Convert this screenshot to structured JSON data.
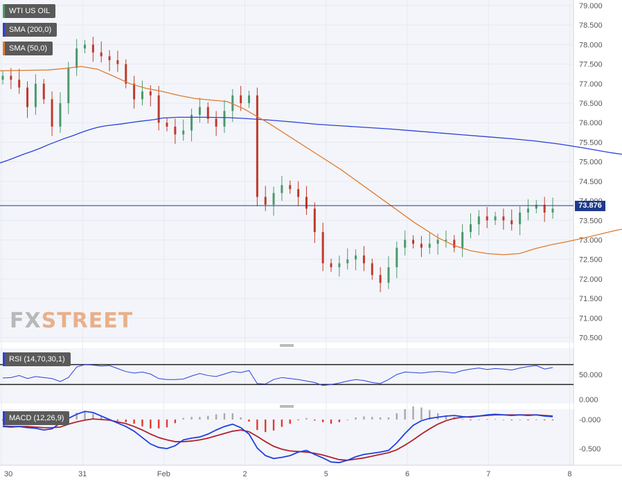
{
  "legends": {
    "price": {
      "label": "WTI US OIL",
      "color": "#4a9a6a"
    },
    "sma200": {
      "label": "SMA (200,0)",
      "color": "#2b3fd8"
    },
    "sma50": {
      "label": "SMA (50,0)",
      "color": "#e07a2e"
    },
    "rsi": {
      "label": "RSI (14,70,30,1)",
      "color": "#2b3fd8"
    },
    "macd": {
      "label": "MACD (12,26,9)",
      "color": "#2b3fd8"
    }
  },
  "current_price_label": "73.876",
  "logo": {
    "part1": "FX",
    "part2": "STREET"
  },
  "colors": {
    "up": "#4a9a6a",
    "down": "#c0392b",
    "macd_line": "#1f3fe0",
    "signal_line": "#b3202a",
    "hist_pos": "#a8a8a8",
    "hist_neg": "#e53935",
    "grid": "#e6e9ef",
    "plot_bg": "#f3f5fa"
  },
  "chart_data": [
    {
      "type": "candlestick",
      "title": "WTI US OIL",
      "x_ticks": [
        "30",
        "31",
        "Feb",
        "2",
        "5",
        "6",
        "7",
        "8"
      ],
      "y_ticks": [
        "79.000",
        "78.500",
        "78.000",
        "77.500",
        "77.000",
        "76.500",
        "76.000",
        "75.500",
        "75.000",
        "74.500",
        "74.000",
        "73.500",
        "73.000",
        "72.500",
        "72.000",
        "71.500",
        "71.000",
        "70.500"
      ],
      "ylim": [
        70.4,
        79.1
      ],
      "last_price": 73.876,
      "close_series": [
        77.2,
        77.1,
        76.9,
        76.4,
        77.0,
        76.6,
        75.9,
        76.5,
        77.4,
        77.9,
        78.0,
        77.8,
        77.7,
        77.6,
        77.5,
        77.0,
        76.6,
        76.8,
        76.7,
        76.0,
        75.9,
        75.7,
        75.8,
        76.2,
        76.4,
        76.1,
        75.9,
        76.3,
        76.7,
        76.5,
        76.7,
        74.1,
        73.9,
        74.2,
        74.4,
        74.3,
        74.1,
        73.8,
        73.2,
        72.4,
        72.3,
        72.4,
        72.5,
        72.6,
        72.4,
        72.1,
        71.9,
        72.3,
        72.8,
        73.0,
        72.9,
        72.8,
        72.9,
        73.0,
        73.0,
        72.8,
        73.2,
        73.4,
        73.6,
        73.5,
        73.6,
        73.5,
        73.4,
        73.7,
        73.8,
        73.9,
        73.7,
        73.8
      ],
      "series": [
        {
          "name": "SMA (200,0)",
          "x": [
            0,
            0.1,
            0.2,
            0.3,
            0.4,
            0.5,
            0.6,
            0.7,
            0.8,
            0.9,
            1.0,
            1.1,
            1.2,
            1.3,
            1.5,
            1.7,
            1.9,
            2.0,
            2.2,
            2.5,
            2.8,
            3.0,
            3.3,
            3.6,
            3.9,
            4.2,
            4.5,
            4.8,
            5.1,
            5.4,
            5.7,
            6.0,
            6.3,
            6.6,
            6.9,
            7.2,
            7.5,
            7.8
          ],
          "values": [
            74.97,
            75.04,
            75.12,
            75.2,
            75.27,
            75.35,
            75.44,
            75.52,
            75.6,
            75.67,
            75.75,
            75.82,
            75.88,
            75.92,
            75.97,
            76.03,
            76.08,
            76.12,
            76.14,
            76.14,
            76.13,
            76.11,
            76.07,
            76.02,
            75.96,
            75.92,
            75.88,
            75.84,
            75.79,
            75.74,
            75.69,
            75.64,
            75.59,
            75.53,
            75.45,
            75.35,
            75.24,
            75.15
          ]
        },
        {
          "name": "SMA (50,0)",
          "x": [
            0,
            0.3,
            0.6,
            0.8,
            1.0,
            1.2,
            1.4,
            1.6,
            1.8,
            2.0,
            2.2,
            2.4,
            2.6,
            2.8,
            3.0,
            3.3,
            3.6,
            3.9,
            4.2,
            4.5,
            4.8,
            5.1,
            5.4,
            5.6,
            5.8,
            6.0,
            6.2,
            6.4,
            6.6,
            6.8,
            7.0,
            7.2,
            7.4,
            7.6,
            7.8
          ],
          "values": [
            77.33,
            77.34,
            77.35,
            77.39,
            77.44,
            77.37,
            77.19,
            77.0,
            76.88,
            76.8,
            76.7,
            76.62,
            76.58,
            76.54,
            76.36,
            76.0,
            75.6,
            75.2,
            74.8,
            74.35,
            73.9,
            73.45,
            73.05,
            72.85,
            72.72,
            72.65,
            72.62,
            72.65,
            72.78,
            72.88,
            72.96,
            73.05,
            73.15,
            73.25,
            73.32
          ]
        }
      ]
    },
    {
      "type": "line",
      "title": "RSI (14,70,30,1)",
      "y_ticks": [
        "50.000",
        "0.000"
      ],
      "ylim": [
        0,
        100
      ],
      "thresholds": [
        70,
        30
      ],
      "series": [
        {
          "name": "RSI (14,70,30,1)",
          "values": [
            43,
            44,
            48,
            42,
            46,
            44,
            42,
            36,
            44,
            65,
            70,
            69,
            67,
            68,
            62,
            56,
            53,
            55,
            51,
            42,
            40,
            40,
            41,
            47,
            52,
            48,
            46,
            51,
            56,
            54,
            58,
            32,
            31,
            40,
            44,
            42,
            40,
            37,
            34,
            28,
            30,
            33,
            37,
            40,
            38,
            34,
            32,
            40,
            50,
            55,
            54,
            53,
            55,
            56,
            55,
            53,
            58,
            61,
            63,
            60,
            62,
            61,
            59,
            63,
            66,
            68,
            61,
            64
          ]
        }
      ]
    },
    {
      "type": "bar+line",
      "title": "MACD (12,26,9)",
      "y_ticks": [
        "-0.000",
        "-0.500"
      ],
      "ylim": [
        -0.75,
        0.2
      ],
      "series": [
        {
          "name": "MACD (12,26,9)",
          "values": [
            -0.12,
            -0.13,
            -0.12,
            -0.14,
            -0.15,
            -0.18,
            -0.16,
            -0.06,
            0.02,
            0.09,
            0.14,
            0.12,
            0.06,
            0.0,
            -0.06,
            -0.12,
            -0.2,
            -0.31,
            -0.42,
            -0.48,
            -0.5,
            -0.45,
            -0.35,
            -0.32,
            -0.3,
            -0.25,
            -0.18,
            -0.12,
            -0.08,
            -0.14,
            -0.25,
            -0.49,
            -0.62,
            -0.67,
            -0.65,
            -0.62,
            -0.56,
            -0.53,
            -0.6,
            -0.66,
            -0.73,
            -0.74,
            -0.7,
            -0.64,
            -0.6,
            -0.58,
            -0.56,
            -0.53,
            -0.4,
            -0.24,
            -0.1,
            -0.02,
            0.02,
            0.04,
            0.06,
            0.07,
            0.05,
            0.04,
            0.06,
            0.08,
            0.09,
            0.08,
            0.07,
            0.08,
            0.07,
            0.08,
            0.06,
            0.05
          ]
        },
        {
          "name": "Signal",
          "values": [
            -0.11,
            -0.12,
            -0.12,
            -0.12,
            -0.13,
            -0.14,
            -0.14,
            -0.13,
            -0.08,
            -0.04,
            -0.01,
            0.01,
            0.0,
            -0.01,
            -0.04,
            -0.07,
            -0.12,
            -0.18,
            -0.25,
            -0.31,
            -0.35,
            -0.38,
            -0.38,
            -0.37,
            -0.35,
            -0.32,
            -0.28,
            -0.24,
            -0.2,
            -0.18,
            -0.21,
            -0.29,
            -0.38,
            -0.46,
            -0.51,
            -0.54,
            -0.55,
            -0.56,
            -0.58,
            -0.61,
            -0.65,
            -0.69,
            -0.7,
            -0.68,
            -0.66,
            -0.63,
            -0.6,
            -0.57,
            -0.52,
            -0.44,
            -0.35,
            -0.25,
            -0.16,
            -0.08,
            -0.02,
            0.02,
            0.04,
            0.05,
            0.06,
            0.07,
            0.08,
            0.08,
            0.08,
            0.08,
            0.08,
            0.08,
            0.07,
            0.06
          ]
        }
      ]
    }
  ]
}
